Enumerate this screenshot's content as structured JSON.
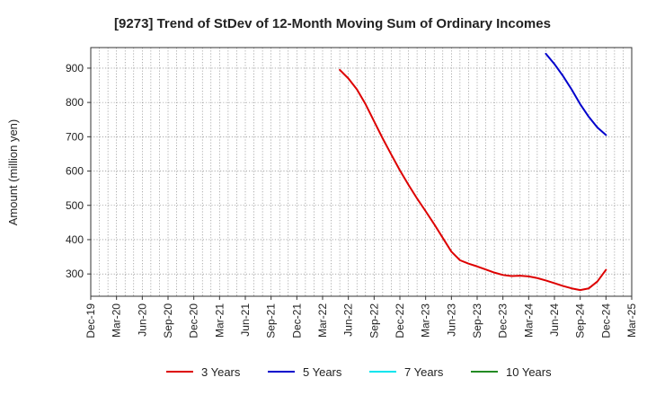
{
  "chart_data": {
    "type": "line",
    "title": "[9273]  Trend of StDev of 12-Month Moving Sum of Ordinary Incomes",
    "ylabel": "Amount (million yen)",
    "xlabel": "",
    "ylim": [
      235,
      960
    ],
    "yticks": [
      300,
      400,
      500,
      600,
      700,
      800,
      900
    ],
    "x_start": "Dec-19",
    "x_end": "Mar-25",
    "xtick_labels": [
      "Dec-19",
      "Mar-20",
      "Jun-20",
      "Sep-20",
      "Dec-20",
      "Mar-21",
      "Jun-21",
      "Sep-21",
      "Dec-21",
      "Mar-22",
      "Jun-22",
      "Sep-22",
      "Dec-22",
      "Mar-23",
      "Jun-23",
      "Sep-23",
      "Dec-23",
      "Mar-24",
      "Jun-24",
      "Sep-24",
      "Dec-24",
      "Mar-25"
    ],
    "grid": true,
    "legend_position": "bottom",
    "series": [
      {
        "name": "3 Years",
        "color": "#dd0000",
        "points": [
          [
            "May-22",
            895
          ],
          [
            "Jun-22",
            870
          ],
          [
            "Jul-22",
            838
          ],
          [
            "Aug-22",
            795
          ],
          [
            "Sep-22",
            745
          ],
          [
            "Oct-22",
            695
          ],
          [
            "Nov-22",
            648
          ],
          [
            "Dec-22",
            602
          ],
          [
            "Jan-23",
            560
          ],
          [
            "Feb-23",
            520
          ],
          [
            "Mar-23",
            483
          ],
          [
            "Apr-23",
            445
          ],
          [
            "May-23",
            405
          ],
          [
            "Jun-23",
            365
          ],
          [
            "Jul-23",
            340
          ],
          [
            "Aug-23",
            330
          ],
          [
            "Sep-23",
            322
          ],
          [
            "Oct-23",
            313
          ],
          [
            "Nov-23",
            304
          ],
          [
            "Dec-23",
            297
          ],
          [
            "Jan-24",
            294
          ],
          [
            "Feb-24",
            295
          ],
          [
            "Mar-24",
            293
          ],
          [
            "Apr-24",
            288
          ],
          [
            "May-24",
            281
          ],
          [
            "Jun-24",
            273
          ],
          [
            "Jul-24",
            265
          ],
          [
            "Aug-24",
            258
          ],
          [
            "Sep-24",
            253
          ],
          [
            "Oct-24",
            258
          ],
          [
            "Nov-24",
            278
          ],
          [
            "Dec-24",
            312
          ]
        ]
      },
      {
        "name": "5 Years",
        "color": "#0000cc",
        "points": [
          [
            "May-24",
            942
          ],
          [
            "Jun-24",
            912
          ],
          [
            "Jul-24",
            877
          ],
          [
            "Aug-24",
            838
          ],
          [
            "Sep-24",
            795
          ],
          [
            "Oct-24",
            758
          ],
          [
            "Nov-24",
            727
          ],
          [
            "Dec-24",
            705
          ]
        ]
      },
      {
        "name": "7 Years",
        "color": "#00e5ee",
        "points": []
      },
      {
        "name": "10 Years",
        "color": "#228b22",
        "points": []
      }
    ]
  }
}
